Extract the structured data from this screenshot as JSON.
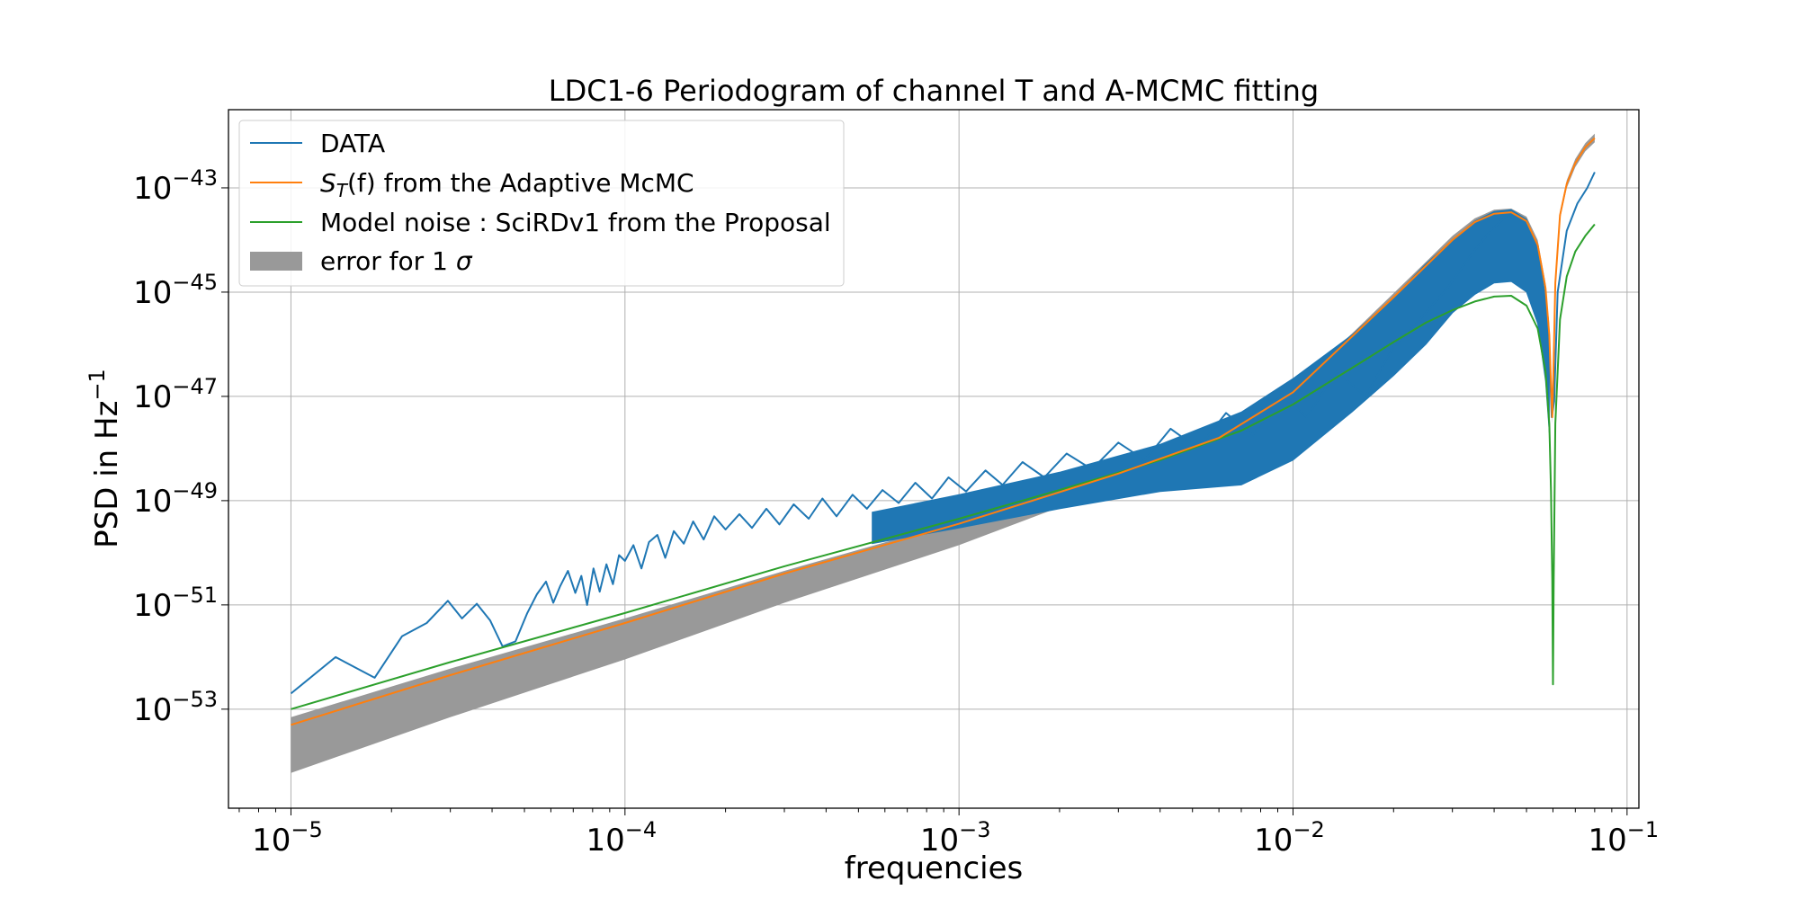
{
  "chart_data": {
    "type": "line",
    "title": "LDC1-6 Periodogram of channel T and A-MCMC fitting",
    "xlabel": "frequencies",
    "ylabel": "PSD in Hz",
    "ylabel_exponent": "−1",
    "xscale": "log",
    "yscale": "log",
    "xlim": [
      6.5e-06,
      0.1085
    ],
    "ylim": [
      1.26e-55,
      3.16e-42
    ],
    "grid": true,
    "legend_position": "upper-left",
    "x_ticks": [
      {
        "exp": -5,
        "base": "10",
        "exp_label": "−5"
      },
      {
        "exp": -4,
        "base": "10",
        "exp_label": "−4"
      },
      {
        "exp": -3,
        "base": "10",
        "exp_label": "−3"
      },
      {
        "exp": -2,
        "base": "10",
        "exp_label": "−2"
      },
      {
        "exp": -1,
        "base": "10",
        "exp_label": "−1"
      }
    ],
    "y_ticks": [
      {
        "exp": -53,
        "base": "10",
        "exp_label": "−53"
      },
      {
        "exp": -51,
        "base": "10",
        "exp_label": "−51"
      },
      {
        "exp": -49,
        "base": "10",
        "exp_label": "−49"
      },
      {
        "exp": -47,
        "base": "10",
        "exp_label": "−47"
      },
      {
        "exp": -45,
        "base": "10",
        "exp_label": "−45"
      },
      {
        "exp": -43,
        "base": "10",
        "exp_label": "−43"
      }
    ],
    "legend": [
      {
        "label": "DATA",
        "color": "#1f77b4",
        "kind": "line"
      },
      {
        "label": "S_T(f) from the Adaptive McMC",
        "label_math": "S",
        "label_sub": "T",
        "label_rest": "(f) from the Adaptive McMC",
        "color": "#ff7f0e",
        "kind": "line"
      },
      {
        "label": "Model noise : SciRDv1 from the Proposal",
        "color": "#2ca02c",
        "kind": "line"
      },
      {
        "label": "error for 1 σ",
        "label_text": "error for 1 ",
        "label_sym": "σ",
        "color": "#999999",
        "kind": "patch"
      }
    ],
    "series": [
      {
        "name": "DATA",
        "color": "#1f77b4",
        "x": [
          1e-05,
          1.36e-05,
          1.78e-05,
          2.15e-05,
          2.55e-05,
          2.95e-05,
          3.25e-05,
          3.6e-05,
          3.95e-05,
          4.3e-05,
          4.7e-05,
          5.1e-05,
          5.45e-05,
          5.8e-05,
          6.1e-05,
          6.4e-05,
          6.75e-05,
          7.1e-05,
          7.4e-05,
          7.7e-05,
          8.05e-05,
          8.4e-05,
          8.8e-05,
          9.2e-05,
          9.6e-05,
          0.0001,
          0.000106,
          0.000112,
          0.000118,
          0.000125,
          0.000132,
          0.00014,
          0.00015,
          0.00016,
          0.000172,
          0.000185,
          0.0002,
          0.00022,
          0.00024,
          0.000265,
          0.00029,
          0.00032,
          0.000355,
          0.00039,
          0.00043,
          0.00048,
          0.00053,
          0.00059,
          0.00066,
          0.00074,
          0.00083,
          0.00093,
          0.00105,
          0.0012,
          0.00135,
          0.00155,
          0.0018,
          0.0021,
          0.0025,
          0.003,
          0.0036,
          0.0043,
          0.0052,
          0.0063,
          0.0076,
          0.0092,
          0.011,
          0.0135,
          0.0165,
          0.02,
          0.024,
          0.029,
          0.034,
          0.039,
          0.044,
          0.049,
          0.054,
          0.058,
          0.0595,
          0.0605,
          0.062,
          0.066,
          0.071,
          0.076,
          0.08
        ],
        "y": [
          2e-53,
          1e-52,
          4e-53,
          2.5e-52,
          4.5e-52,
          1.2e-51,
          5.5e-52,
          1.05e-51,
          5e-52,
          1.6e-52,
          2e-52,
          7e-52,
          1.6e-51,
          2.8e-51,
          1.1e-51,
          2.3e-51,
          4.5e-51,
          1.7e-51,
          3.6e-51,
          1e-51,
          5e-51,
          1.8e-51,
          6e-51,
          2.5e-51,
          9e-51,
          7e-51,
          1.4e-50,
          5e-51,
          1.6e-50,
          2.2e-50,
          8e-51,
          2.6e-50,
          1.5e-50,
          4e-50,
          1.8e-50,
          5e-50,
          2.8e-50,
          5.5e-50,
          3e-50,
          7e-50,
          3.5e-50,
          8.5e-50,
          4.5e-50,
          1.1e-49,
          5e-50,
          1.3e-49,
          7e-50,
          1.6e-49,
          9e-50,
          2.2e-49,
          1.1e-49,
          2.8e-49,
          1.5e-49,
          3.8e-49,
          2e-49,
          5.5e-49,
          2.8e-49,
          8e-49,
          4e-49,
          1.3e-48,
          6e-49,
          2.4e-48,
          1e-48,
          4.8e-48,
          1.8e-48,
          1.1e-47,
          4e-48,
          3e-47,
          1e-47,
          9e-47,
          3e-46,
          1.2e-45,
          5e-45,
          1.5e-44,
          3e-44,
          2.5e-44,
          8e-45,
          3e-46,
          4e-48,
          8e-48,
          1e-45,
          1.5e-44,
          5e-44,
          1e-43,
          2e-43
        ],
        "upper_envelope": [
          [
            0.00055,
            6e-50
          ],
          [
            0.001,
            1.3e-49
          ],
          [
            0.002,
            3.5e-49
          ],
          [
            0.004,
            1.2e-48
          ],
          [
            0.007,
            5e-48
          ],
          [
            0.01,
            2.2e-47
          ],
          [
            0.015,
            1.5e-46
          ],
          [
            0.02,
            8e-46
          ],
          [
            0.025,
            3.5e-45
          ],
          [
            0.03,
            1e-44
          ],
          [
            0.035,
            2.3e-44
          ],
          [
            0.04,
            3.5e-44
          ],
          [
            0.045,
            3.8e-44
          ],
          [
            0.05,
            2.5e-44
          ],
          [
            0.054,
            7e-45
          ],
          [
            0.057,
            8e-46
          ],
          [
            0.0585,
            6e-47
          ]
        ],
        "lower_envelope": [
          [
            0.00055,
            1.5e-50
          ],
          [
            0.001,
            3e-50
          ],
          [
            0.002,
            7e-50
          ],
          [
            0.004,
            1.5e-49
          ],
          [
            0.007,
            2e-49
          ],
          [
            0.01,
            6e-49
          ],
          [
            0.015,
            5e-48
          ],
          [
            0.02,
            2.5e-47
          ],
          [
            0.025,
            1e-46
          ],
          [
            0.03,
            4e-46
          ],
          [
            0.035,
            9e-46
          ],
          [
            0.04,
            1.5e-45
          ],
          [
            0.045,
            1.6e-45
          ],
          [
            0.05,
            1e-45
          ],
          [
            0.054,
            2.5e-46
          ],
          [
            0.057,
            2e-47
          ],
          [
            0.0585,
            2e-48
          ]
        ]
      },
      {
        "name": "S_T(f) from the Adaptive McMC",
        "color": "#ff7f0e",
        "x": [
          1e-05,
          3e-05,
          0.0001,
          0.0003,
          0.001,
          0.003,
          0.006,
          0.01,
          0.015,
          0.02,
          0.025,
          0.03,
          0.035,
          0.04,
          0.045,
          0.05,
          0.054,
          0.057,
          0.0585,
          0.0593,
          0.0597,
          0.0602,
          0.061,
          0.063,
          0.066,
          0.07,
          0.075,
          0.08
        ],
        "y": [
          5e-54,
          4.5e-53,
          4.5e-52,
          4e-51,
          3.6e-50,
          3.3e-49,
          1.6e-48,
          1.2e-47,
          1.4e-46,
          8e-46,
          3.2e-45,
          1e-44,
          2.2e-44,
          3.2e-44,
          3.4e-44,
          2.3e-44,
          8e-45,
          1.2e-45,
          1.5e-46,
          1.2e-47,
          4e-48,
          3e-47,
          1.5e-45,
          3e-44,
          1.2e-43,
          3e-43,
          6e-43,
          9e-43
        ]
      },
      {
        "name": "Model noise : SciRDv1 from the Proposal",
        "color": "#2ca02c",
        "x": [
          1e-05,
          3e-05,
          0.0001,
          0.0003,
          0.001,
          0.002,
          0.004,
          0.007,
          0.01,
          0.015,
          0.02,
          0.025,
          0.03,
          0.035,
          0.04,
          0.045,
          0.05,
          0.054,
          0.057,
          0.0585,
          0.0592,
          0.0597,
          0.06,
          0.0603,
          0.061,
          0.063,
          0.066,
          0.07,
          0.075,
          0.08
        ],
        "y": [
          1e-53,
          8e-53,
          7e-52,
          5.5e-51,
          4.5e-50,
          1.6e-49,
          6e-49,
          2.2e-48,
          7e-48,
          3.5e-47,
          1.1e-46,
          2.6e-46,
          4.5e-46,
          6.6e-46,
          8.2e-46,
          8.5e-46,
          5.5e-46,
          2e-46,
          3e-47,
          3e-48,
          1.5e-49,
          3e-51,
          3e-53,
          3e-51,
          3e-48,
          3e-46,
          2e-45,
          6e-45,
          1.2e-44,
          2e-44
        ]
      },
      {
        "name": "error for 1 σ",
        "color": "#999999",
        "kind": "band",
        "x": [
          1e-05,
          3e-05,
          0.0001,
          0.0003,
          0.001,
          0.003,
          0.006,
          0.01,
          0.015,
          0.02,
          0.025,
          0.03,
          0.035,
          0.04,
          0.045,
          0.05,
          0.054,
          0.057,
          0.0585,
          0.0593,
          0.0597,
          0.0602,
          0.061,
          0.063,
          0.066,
          0.07,
          0.075,
          0.08
        ],
        "upper": [
          7e-54,
          6e-53,
          5.5e-52,
          4.5e-51,
          4e-50,
          3.7e-49,
          1.8e-48,
          1.35e-47,
          1.6e-46,
          9.5e-46,
          3.8e-45,
          1.2e-44,
          2.6e-44,
          3.8e-44,
          4e-44,
          2.8e-44,
          1e-44,
          1.5e-45,
          1.8e-46,
          1.5e-47,
          5e-48,
          3.5e-47,
          1.8e-45,
          3.5e-44,
          1.4e-43,
          3.6e-43,
          7.2e-43,
          1.1e-42
        ],
        "lower": [
          6e-55,
          7e-54,
          9e-53,
          1.1e-51,
          1.4e-50,
          2e-49,
          1.2e-48,
          1e-47,
          1.2e-46,
          6.5e-46,
          2.7e-45,
          8.5e-45,
          1.9e-44,
          2.7e-44,
          2.9e-44,
          2e-44,
          6.5e-45,
          1e-45,
          1.2e-46,
          9e-48,
          3e-48,
          2.5e-47,
          1.2e-45,
          2.5e-44,
          1e-43,
          2.5e-43,
          5e-43,
          7.5e-43
        ]
      }
    ]
  }
}
